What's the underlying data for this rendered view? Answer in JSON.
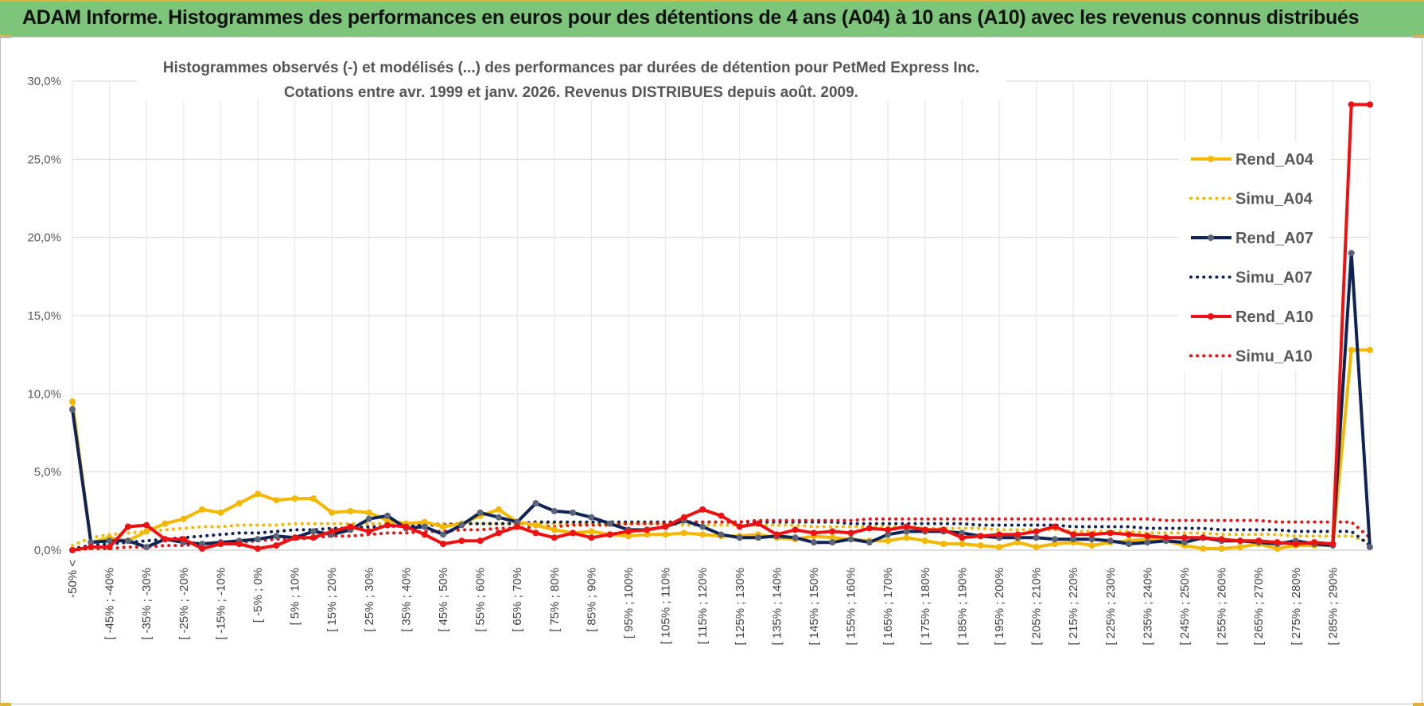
{
  "header": {
    "title": "ADAM Informe. Histogrammes des performances en euros pour des détentions de 4 ans (A04) à 10 ans (A10) avec les revenus connus distribués",
    "bar_color": "#7dc57a",
    "accent_color": "#e3b23c"
  },
  "chart_data": {
    "type": "line",
    "title_line1": "Histogrammes observés (-) et modélisés (...) des performances par durées de détention pour PetMed Express Inc.",
    "title_line2": "Cotations entre avr. 1999 et janv. 2026. Revenus DISTRIBUES depuis août. 2009.",
    "ylim": [
      0,
      30
    ],
    "yticks": [
      "0,0%",
      "5,0%",
      "10,0%",
      "15,0%",
      "20,0%",
      "25,0%",
      "30,0%"
    ],
    "grid": true,
    "legend_position": "right",
    "x_labels": [
      "-50% <",
      "[ -45% ; -40%",
      "[ -35% ; -30%",
      "[ -25% ; -20%",
      "[ -15% ; -10%",
      "[ -5% ; 0%",
      "[ 5% ; 10%",
      "[ 15% ; 20%",
      "[ 25% ; 30%",
      "[ 35% ; 40%",
      "[ 45% ; 50%",
      "[ 55% ; 60%",
      "[ 65% ; 70%",
      "[ 75% ; 80%",
      "[ 85% ; 90%",
      "[ 95% ; 100%",
      "[ 105% ; 110%",
      "[ 115% ; 120%",
      "[ 125% ; 130%",
      "[ 135% ; 140%",
      "[ 145% ; 150%",
      "[ 155% ; 160%",
      "[ 165% ; 170%",
      "[ 175% ; 180%",
      "[ 185% ; 190%",
      "[ 195% ; 200%",
      "[ 205% ; 210%",
      "[ 215% ; 220%",
      "[ 225% ; 230%",
      "[ 235% ; 240%",
      "[ 245% ; 250%",
      "[ 255% ; 260%",
      "[ 265% ; 270%",
      "[ 275% ; 280%",
      "[ 285% ; 290%"
    ],
    "n_points": 71,
    "series": [
      {
        "name": "Rend_A04",
        "color": "#f5b800",
        "style": "solid",
        "values": [
          9.5,
          0.5,
          0.8,
          0.6,
          1.2,
          1.7,
          2.0,
          2.6,
          2.4,
          3.0,
          3.6,
          3.2,
          3.3,
          3.3,
          2.4,
          2.5,
          2.4,
          1.9,
          1.7,
          1.8,
          1.5,
          1.7,
          2.2,
          2.6,
          1.8,
          1.6,
          1.3,
          1.1,
          1.2,
          1.0,
          0.9,
          1.0,
          1.0,
          1.1,
          1.0,
          0.9,
          0.9,
          1.0,
          0.8,
          0.7,
          0.9,
          0.8,
          0.7,
          0.6,
          0.6,
          0.8,
          0.6,
          0.4,
          0.4,
          0.3,
          0.2,
          0.5,
          0.2,
          0.4,
          0.5,
          0.3,
          0.5,
          0.6,
          0.7,
          0.6,
          0.3,
          0.1,
          0.1,
          0.2,
          0.4,
          0.1,
          0.3,
          0.3,
          0.3,
          12.8,
          12.8
        ]
      },
      {
        "name": "Simu_A04",
        "color": "#f5b800",
        "style": "dotted",
        "values": [
          0.3,
          0.8,
          1.0,
          1.1,
          1.2,
          1.3,
          1.4,
          1.5,
          1.5,
          1.6,
          1.6,
          1.6,
          1.7,
          1.7,
          1.7,
          1.7,
          1.7,
          1.7,
          1.7,
          1.7,
          1.7,
          1.7,
          1.7,
          1.7,
          1.7,
          1.7,
          1.7,
          1.7,
          1.7,
          1.7,
          1.7,
          1.7,
          1.7,
          1.6,
          1.6,
          1.6,
          1.6,
          1.6,
          1.6,
          1.6,
          1.5,
          1.5,
          1.5,
          1.5,
          1.5,
          1.5,
          1.4,
          1.4,
          1.4,
          1.4,
          1.3,
          1.3,
          1.3,
          1.3,
          1.2,
          1.2,
          1.2,
          1.2,
          1.1,
          1.1,
          1.1,
          1.1,
          1.0,
          1.0,
          1.0,
          1.0,
          0.9,
          0.9,
          0.9,
          0.9,
          0.5
        ]
      },
      {
        "name": "Rend_A07",
        "color": "#0f2356",
        "style": "solid",
        "values": [
          9.0,
          0.5,
          0.6,
          0.6,
          0.2,
          0.7,
          0.5,
          0.4,
          0.5,
          0.6,
          0.7,
          0.9,
          0.8,
          1.2,
          1.0,
          1.3,
          2.0,
          2.2,
          1.4,
          1.5,
          1.0,
          1.6,
          2.4,
          2.1,
          1.8,
          3.0,
          2.5,
          2.4,
          2.1,
          1.7,
          1.3,
          1.3,
          1.5,
          1.9,
          1.5,
          1.0,
          0.8,
          0.8,
          0.9,
          0.8,
          0.5,
          0.5,
          0.7,
          0.5,
          1.0,
          1.2,
          1.2,
          1.2,
          1.1,
          0.9,
          0.8,
          0.8,
          0.8,
          0.7,
          0.7,
          0.7,
          0.6,
          0.4,
          0.5,
          0.6,
          0.5,
          0.8,
          0.6,
          0.6,
          0.5,
          0.4,
          0.6,
          0.4,
          0.3,
          19.0,
          0.2
        ]
      },
      {
        "name": "Simu_A07",
        "color": "#0f2356",
        "style": "dotted",
        "values": [
          0.1,
          0.3,
          0.4,
          0.5,
          0.6,
          0.7,
          0.8,
          0.9,
          1.0,
          1.1,
          1.1,
          1.2,
          1.3,
          1.3,
          1.4,
          1.4,
          1.5,
          1.5,
          1.6,
          1.6,
          1.6,
          1.7,
          1.7,
          1.7,
          1.7,
          1.8,
          1.8,
          1.8,
          1.8,
          1.8,
          1.8,
          1.8,
          1.8,
          1.8,
          1.8,
          1.8,
          1.8,
          1.8,
          1.8,
          1.8,
          1.8,
          1.8,
          1.7,
          1.7,
          1.7,
          1.7,
          1.7,
          1.7,
          1.7,
          1.6,
          1.6,
          1.6,
          1.6,
          1.6,
          1.5,
          1.5,
          1.5,
          1.5,
          1.4,
          1.4,
          1.4,
          1.4,
          1.3,
          1.3,
          1.3,
          1.3,
          1.2,
          1.2,
          1.2,
          1.2,
          0.3
        ]
      },
      {
        "name": "Rend_A10",
        "color": "#ee1111",
        "style": "solid",
        "values": [
          0.0,
          0.2,
          0.2,
          1.5,
          1.6,
          0.7,
          0.7,
          0.1,
          0.4,
          0.4,
          0.1,
          0.3,
          0.8,
          0.8,
          1.2,
          1.5,
          1.2,
          1.6,
          1.5,
          1.0,
          0.4,
          0.6,
          0.6,
          1.1,
          1.5,
          1.1,
          0.8,
          1.1,
          0.8,
          1.0,
          1.2,
          1.3,
          1.5,
          2.1,
          2.6,
          2.2,
          1.5,
          1.7,
          1.0,
          1.3,
          1.1,
          1.2,
          1.1,
          1.4,
          1.3,
          1.5,
          1.3,
          1.3,
          0.8,
          0.9,
          1.0,
          1.0,
          1.2,
          1.5,
          1.0,
          1.0,
          1.1,
          1.0,
          0.9,
          0.8,
          0.8,
          0.8,
          0.7,
          0.6,
          0.6,
          0.5,
          0.4,
          0.5,
          0.4,
          28.5,
          28.5
        ]
      },
      {
        "name": "Simu_A10",
        "color": "#ee1111",
        "style": "dotted",
        "values": [
          0.0,
          0.1,
          0.1,
          0.2,
          0.2,
          0.3,
          0.3,
          0.4,
          0.5,
          0.5,
          0.6,
          0.7,
          0.7,
          0.8,
          0.9,
          0.9,
          1.0,
          1.1,
          1.1,
          1.2,
          1.2,
          1.3,
          1.3,
          1.4,
          1.4,
          1.5,
          1.5,
          1.6,
          1.6,
          1.6,
          1.7,
          1.7,
          1.7,
          1.8,
          1.8,
          1.8,
          1.8,
          1.9,
          1.9,
          1.9,
          1.9,
          1.9,
          1.9,
          2.0,
          2.0,
          2.0,
          2.0,
          2.0,
          2.0,
          2.0,
          2.0,
          2.0,
          2.0,
          2.0,
          2.0,
          2.0,
          2.0,
          2.0,
          2.0,
          1.9,
          1.9,
          1.9,
          1.9,
          1.9,
          1.9,
          1.8,
          1.8,
          1.8,
          1.8,
          1.8,
          0.8
        ]
      }
    ]
  }
}
